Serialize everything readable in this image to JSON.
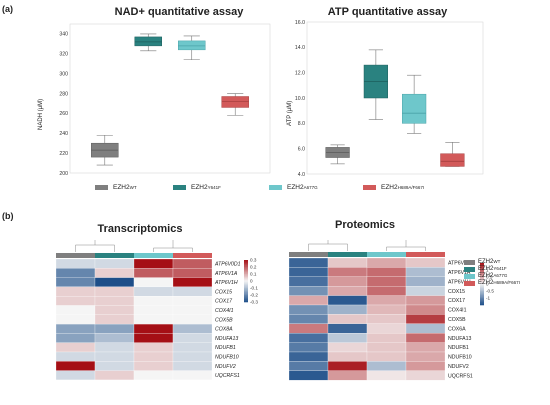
{
  "panels": {
    "a": "(a)",
    "b": "(b)"
  },
  "colors": {
    "wt": "#7f7f7f",
    "y641f": "#2a8280",
    "a677g": "#6ec7cb",
    "h689a": "#d25a5a"
  },
  "legend_a": [
    {
      "name": "EZH2",
      "sup": "WT",
      "color": "#7f7f7f"
    },
    {
      "name": "EZH2",
      "sup": "Y641F",
      "color": "#2a8280"
    },
    {
      "name": "EZH2",
      "sup": "A677G",
      "color": "#6ec7cb"
    },
    {
      "name": "EZH2",
      "sup": "H689A/F667I",
      "color": "#d25a5a"
    }
  ],
  "chart_data": [
    {
      "type": "box",
      "title": "NAD+ quantitative assay",
      "ylabel": "NADH (μM)",
      "ylim": [
        200,
        350
      ],
      "yticks": [
        200,
        220,
        240,
        260,
        280,
        300,
        320,
        340
      ],
      "series": [
        {
          "name": "EZH2WT",
          "min": 208,
          "q1": 216,
          "median": 223,
          "q3": 230,
          "max": 238
        },
        {
          "name": "EZH2Y641F",
          "min": 323,
          "q1": 328,
          "median": 332,
          "q3": 337,
          "max": 340
        },
        {
          "name": "EZH2A677G",
          "min": 314,
          "q1": 324,
          "median": 328,
          "q3": 333,
          "max": 338
        },
        {
          "name": "EZH2H689A/F667I",
          "min": 258,
          "q1": 266,
          "median": 272,
          "q3": 277,
          "max": 280
        }
      ]
    },
    {
      "type": "box",
      "title": "ATP quantitative assay",
      "ylabel": "ATP (μM)",
      "ylim": [
        4.0,
        16.0
      ],
      "yticks": [
        "4.0",
        "6.0",
        "8.0",
        "10.0",
        "12.0",
        "14.0",
        "16.0"
      ],
      "series": [
        {
          "name": "EZH2WT",
          "min": 4.8,
          "q1": 5.3,
          "median": 5.7,
          "q3": 6.1,
          "max": 6.3
        },
        {
          "name": "EZH2Y641F",
          "min": 8.3,
          "q1": 10.0,
          "median": 11.3,
          "q3": 12.6,
          "max": 13.8
        },
        {
          "name": "EZH2A677G",
          "min": 7.2,
          "q1": 8.0,
          "median": 8.8,
          "q3": 10.3,
          "max": 11.8
        },
        {
          "name": "EZH2H689A/F667I",
          "min": 4.6,
          "q1": 4.6,
          "median": 5.0,
          "q3": 5.6,
          "max": 6.5
        }
      ]
    },
    {
      "type": "heatmap",
      "title": "Transcriptomics",
      "columns": [
        "EZH2WT",
        "EZH2Y641F",
        "EZH2A677G",
        "EZH2H689A/F667I"
      ],
      "rows": [
        "ATP6V0D1",
        "ATP6V1A",
        "ATP6V1H",
        "COX15",
        "COX17",
        "COX4I1",
        "COX5B",
        "COX8A",
        "NDUFA13",
        "NDUFB1",
        "NDUFB10",
        "NDUFV2",
        "UQCRFS1"
      ],
      "values": [
        [
          -0.05,
          -0.05,
          0.3,
          0.2
        ],
        [
          -0.2,
          0.05,
          0.2,
          0.2
        ],
        [
          -0.2,
          -0.3,
          0.0,
          0.3
        ],
        [
          0.05,
          0.05,
          -0.05,
          -0.05
        ],
        [
          0.05,
          0.05,
          0.0,
          0.0
        ],
        [
          0.0,
          0.05,
          0.0,
          0.0
        ],
        [
          0.0,
          0.05,
          0.0,
          0.0
        ],
        [
          -0.15,
          -0.15,
          0.3,
          -0.1
        ],
        [
          -0.15,
          -0.1,
          0.3,
          -0.05
        ],
        [
          0.05,
          -0.05,
          0.05,
          -0.05
        ],
        [
          -0.05,
          -0.05,
          0.05,
          -0.05
        ],
        [
          0.3,
          -0.05,
          0.05,
          -0.05
        ],
        [
          -0.05,
          0.05,
          0.0,
          0.0
        ]
      ],
      "colorbar_ticks": [
        "0.3",
        "0.2",
        "0.1",
        "0",
        "-0.1",
        "-0.2",
        "-0.3"
      ],
      "vmin": -0.3,
      "vmax": 0.3
    },
    {
      "type": "heatmap",
      "title": "Proteomics",
      "columns": [
        "EZH2WT",
        "EZH2Y641F",
        "EZH2A677G",
        "EZH2H689A/F667I"
      ],
      "rows": [
        "ATP6V0D1",
        "ATP6V1A",
        "ATP6V1H",
        "COX15",
        "COX17",
        "COX4I1",
        "COX5B",
        "COX6A",
        "NDUFA13",
        "NDUFB1",
        "NDUFB10",
        "NDUFV2",
        "UQCRFS1"
      ],
      "values": [
        [
          -1.3,
          0.3,
          0.5,
          0.3
        ],
        [
          -1.3,
          0.8,
          0.9,
          -0.5
        ],
        [
          -1.2,
          0.6,
          0.9,
          -0.6
        ],
        [
          -0.9,
          0.5,
          0.9,
          -0.3
        ],
        [
          0.5,
          -1.4,
          0.5,
          0.6
        ],
        [
          -0.9,
          -0.6,
          0.4,
          0.7
        ],
        [
          -1.0,
          0.3,
          0.3,
          1.2
        ],
        [
          0.8,
          -1.3,
          0.2,
          -0.5
        ],
        [
          -1.2,
          -0.4,
          0.3,
          0.9
        ],
        [
          -1.1,
          0.2,
          0.3,
          0.5
        ],
        [
          -1.3,
          0.3,
          0.3,
          0.5
        ],
        [
          -1.1,
          1.4,
          -0.5,
          0.6
        ],
        [
          -1.4,
          0.6,
          0.1,
          0.2
        ]
      ],
      "colorbar_ticks": [
        "1",
        "0.5",
        "0",
        "-0.5",
        "-1"
      ],
      "vmin": -1.5,
      "vmax": 1.5
    }
  ],
  "legend_b": [
    {
      "name": "EZH2",
      "sup": "WT",
      "color": "#7f7f7f"
    },
    {
      "name": "EZH2",
      "sup": "Y641F",
      "color": "#2a8280"
    },
    {
      "name": "EZH2",
      "sup": "A677G",
      "color": "#6ec7cb"
    },
    {
      "name": "EZH2",
      "sup": "H689A/F667I",
      "color": "#d25a5a"
    }
  ]
}
